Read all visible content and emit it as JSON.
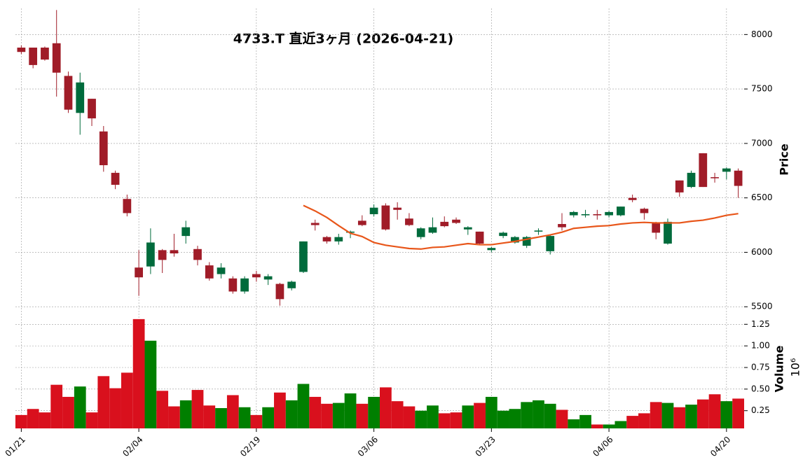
{
  "chart_data": {
    "type": "candlestick",
    "title": "4733.T 直近3ヶ月 (2026-04-21)",
    "ylabel": "Price",
    "categories": [
      "01/21",
      null,
      null,
      null,
      null,
      null,
      null,
      null,
      null,
      null,
      "02/04",
      null,
      null,
      null,
      null,
      null,
      null,
      null,
      null,
      null,
      "02/19",
      null,
      null,
      null,
      null,
      null,
      null,
      null,
      null,
      null,
      "03/06",
      null,
      null,
      null,
      null,
      null,
      null,
      null,
      null,
      null,
      "03/23",
      null,
      null,
      null,
      null,
      null,
      null,
      null,
      null,
      null,
      "04/06",
      null,
      null,
      null,
      null,
      null,
      null,
      null,
      null,
      null,
      "04/20",
      null
    ],
    "open": [
      7880,
      7880,
      7880,
      7920,
      7620,
      7280,
      7410,
      7110,
      6730,
      6490,
      5860,
      5870,
      6020,
      6020,
      6150,
      6030,
      5880,
      5800,
      5760,
      5640,
      5800,
      5750,
      5710,
      5670,
      5820,
      6270,
      6140,
      6100,
      6180,
      6290,
      6350,
      6430,
      6410,
      6310,
      6140,
      6180,
      6280,
      6300,
      6210,
      6190,
      6020,
      6150,
      6090,
      6060,
      6190,
      6010,
      6260,
      6340,
      6340,
      6350,
      6340,
      6340,
      6500,
      6400,
      6270,
      6080,
      6660,
      6600,
      6910,
      6690,
      6740,
      6750
    ],
    "high": [
      7900,
      7880,
      7890,
      8225,
      7660,
      7650,
      7410,
      7160,
      6750,
      6530,
      6020,
      6220,
      6030,
      6170,
      6290,
      6060,
      5910,
      5900,
      5780,
      5780,
      5830,
      5800,
      5720,
      5740,
      6100,
      6300,
      6150,
      6170,
      6200,
      6340,
      6440,
      6450,
      6460,
      6360,
      6230,
      6320,
      6330,
      6320,
      6240,
      6190,
      6050,
      6190,
      6150,
      6150,
      6220,
      6160,
      6360,
      6380,
      6390,
      6390,
      6380,
      6420,
      6530,
      6410,
      6280,
      6310,
      6660,
      6750,
      6910,
      6730,
      6780,
      6770
    ],
    "low": [
      7820,
      7690,
      7760,
      7430,
      7280,
      7080,
      7160,
      6740,
      6580,
      6330,
      5600,
      5800,
      5810,
      5960,
      6080,
      5880,
      5740,
      5760,
      5620,
      5620,
      5730,
      5700,
      5510,
      5650,
      5810,
      6200,
      6080,
      6070,
      6130,
      6240,
      6330,
      6200,
      6300,
      6240,
      6120,
      6170,
      6230,
      6260,
      6160,
      6070,
      6000,
      6130,
      6080,
      6040,
      6160,
      5980,
      6200,
      6320,
      6320,
      6300,
      6320,
      6330,
      6460,
      6300,
      6120,
      6070,
      6510,
      6590,
      6600,
      6640,
      6670,
      6500
    ],
    "close": [
      7840,
      7720,
      7770,
      7650,
      7310,
      7560,
      7230,
      6800,
      6620,
      6360,
      5770,
      6090,
      5930,
      5990,
      6230,
      5930,
      5760,
      5860,
      5640,
      5760,
      5770,
      5780,
      5570,
      5730,
      6100,
      6250,
      6100,
      6140,
      6190,
      6250,
      6410,
      6210,
      6390,
      6250,
      6220,
      6230,
      6240,
      6270,
      6230,
      6080,
      6040,
      6180,
      6140,
      6140,
      6200,
      6150,
      6230,
      6370,
      6350,
      6340,
      6370,
      6420,
      6480,
      6360,
      6180,
      6280,
      6550,
      6730,
      6600,
      6680,
      6770,
      6610
    ],
    "up_color": "#006b3c",
    "down_color": "#a01c28",
    "ylim": [
      5450,
      8240
    ],
    "yticks": [
      5500,
      6000,
      6500,
      7000,
      7500,
      8000
    ],
    "grid": true,
    "moving_average": {
      "color": "#e8561a",
      "values": [
        null,
        null,
        null,
        null,
        null,
        null,
        null,
        null,
        null,
        null,
        null,
        null,
        null,
        null,
        null,
        null,
        null,
        null,
        null,
        null,
        null,
        null,
        null,
        null,
        6430,
        6380,
        6320,
        6245,
        6175,
        6145,
        6090,
        6065,
        6050,
        6035,
        6030,
        6045,
        6050,
        6065,
        6080,
        6070,
        6070,
        6085,
        6100,
        6120,
        6140,
        6160,
        6185,
        6220,
        6230,
        6240,
        6245,
        6260,
        6270,
        6275,
        6270,
        6270,
        6270,
        6285,
        6295,
        6315,
        6340,
        6355
      ]
    },
    "volume": {
      "label": "Volume",
      "scale": "10⁶",
      "up_color": "#007f00",
      "down_color": "#d9101d",
      "values": [
        0.2,
        0.27,
        0.23,
        0.55,
        0.41,
        0.53,
        0.23,
        0.65,
        0.51,
        0.69,
        1.31,
        1.06,
        0.48,
        0.3,
        0.37,
        0.49,
        0.31,
        0.28,
        0.43,
        0.29,
        0.2,
        0.29,
        0.46,
        0.37,
        0.56,
        0.41,
        0.33,
        0.34,
        0.45,
        0.33,
        0.41,
        0.52,
        0.36,
        0.3,
        0.25,
        0.31,
        0.22,
        0.23,
        0.31,
        0.34,
        0.41,
        0.25,
        0.27,
        0.35,
        0.37,
        0.33,
        0.26,
        0.15,
        0.2,
        0.09,
        0.09,
        0.13,
        0.19,
        0.22,
        0.35,
        0.34,
        0.29,
        0.32,
        0.38,
        0.44,
        0.36,
        0.39
      ],
      "ylim": [
        0.045,
        1.39
      ],
      "yticks": [
        0.25,
        {
          "value": 0.5,
          "label": "0.50"
        },
        0.75,
        {
          "value": 1.0,
          "label": "1.00"
        },
        1.25
      ]
    }
  }
}
